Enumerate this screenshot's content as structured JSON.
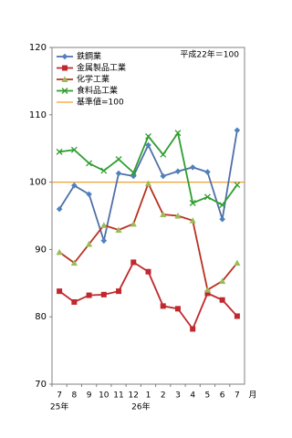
{
  "chart_data": {
    "type": "line",
    "annotation": "平成22年＝100",
    "categories": [
      "7",
      "8",
      "9",
      "10",
      "11",
      "12",
      "1",
      "2",
      "3",
      "4",
      "5",
      "6",
      "7"
    ],
    "category_years": [
      "25年",
      null,
      null,
      null,
      null,
      null,
      "26年",
      null,
      null,
      null,
      null,
      null,
      null
    ],
    "x_unit": "月",
    "ylim": [
      70,
      120
    ],
    "yticks": [
      70,
      80,
      90,
      100,
      110,
      120
    ],
    "grid": false,
    "legend": "top-left",
    "series": [
      {
        "name": "鉄鋼業",
        "color": "#4f6fa8",
        "marker": "diamond",
        "marker_color": "#4f81bd",
        "values": [
          96.0,
          99.5,
          98.2,
          91.3,
          101.3,
          100.9,
          105.5,
          100.9,
          101.6,
          102.2,
          101.5,
          94.5,
          107.7
        ]
      },
      {
        "name": "金属製品工業",
        "color": "#c0282d",
        "marker": "square",
        "marker_color": "#c0282d",
        "values": [
          83.8,
          82.2,
          83.2,
          83.3,
          83.8,
          88.1,
          86.7,
          81.6,
          81.2,
          78.2,
          83.5,
          82.5,
          80.1
        ]
      },
      {
        "name": "化学工業",
        "color": "#b8321e",
        "marker": "triangle",
        "marker_color": "#9bbb59",
        "values": [
          89.6,
          88.0,
          90.8,
          93.6,
          92.9,
          93.8,
          99.8,
          95.2,
          95.0,
          94.3,
          84.0,
          85.3,
          88.0
        ]
      },
      {
        "name": "食料品工業",
        "color": "#2e9e2e",
        "marker": "x",
        "marker_color": "#2e9e2e",
        "values": [
          104.5,
          104.8,
          102.8,
          101.7,
          103.4,
          101.4,
          106.8,
          104.1,
          107.3,
          96.9,
          97.8,
          96.6,
          99.6
        ]
      }
    ],
    "reference_line": {
      "name": "基準値=100",
      "value": 100,
      "color": "#f0a030"
    }
  }
}
